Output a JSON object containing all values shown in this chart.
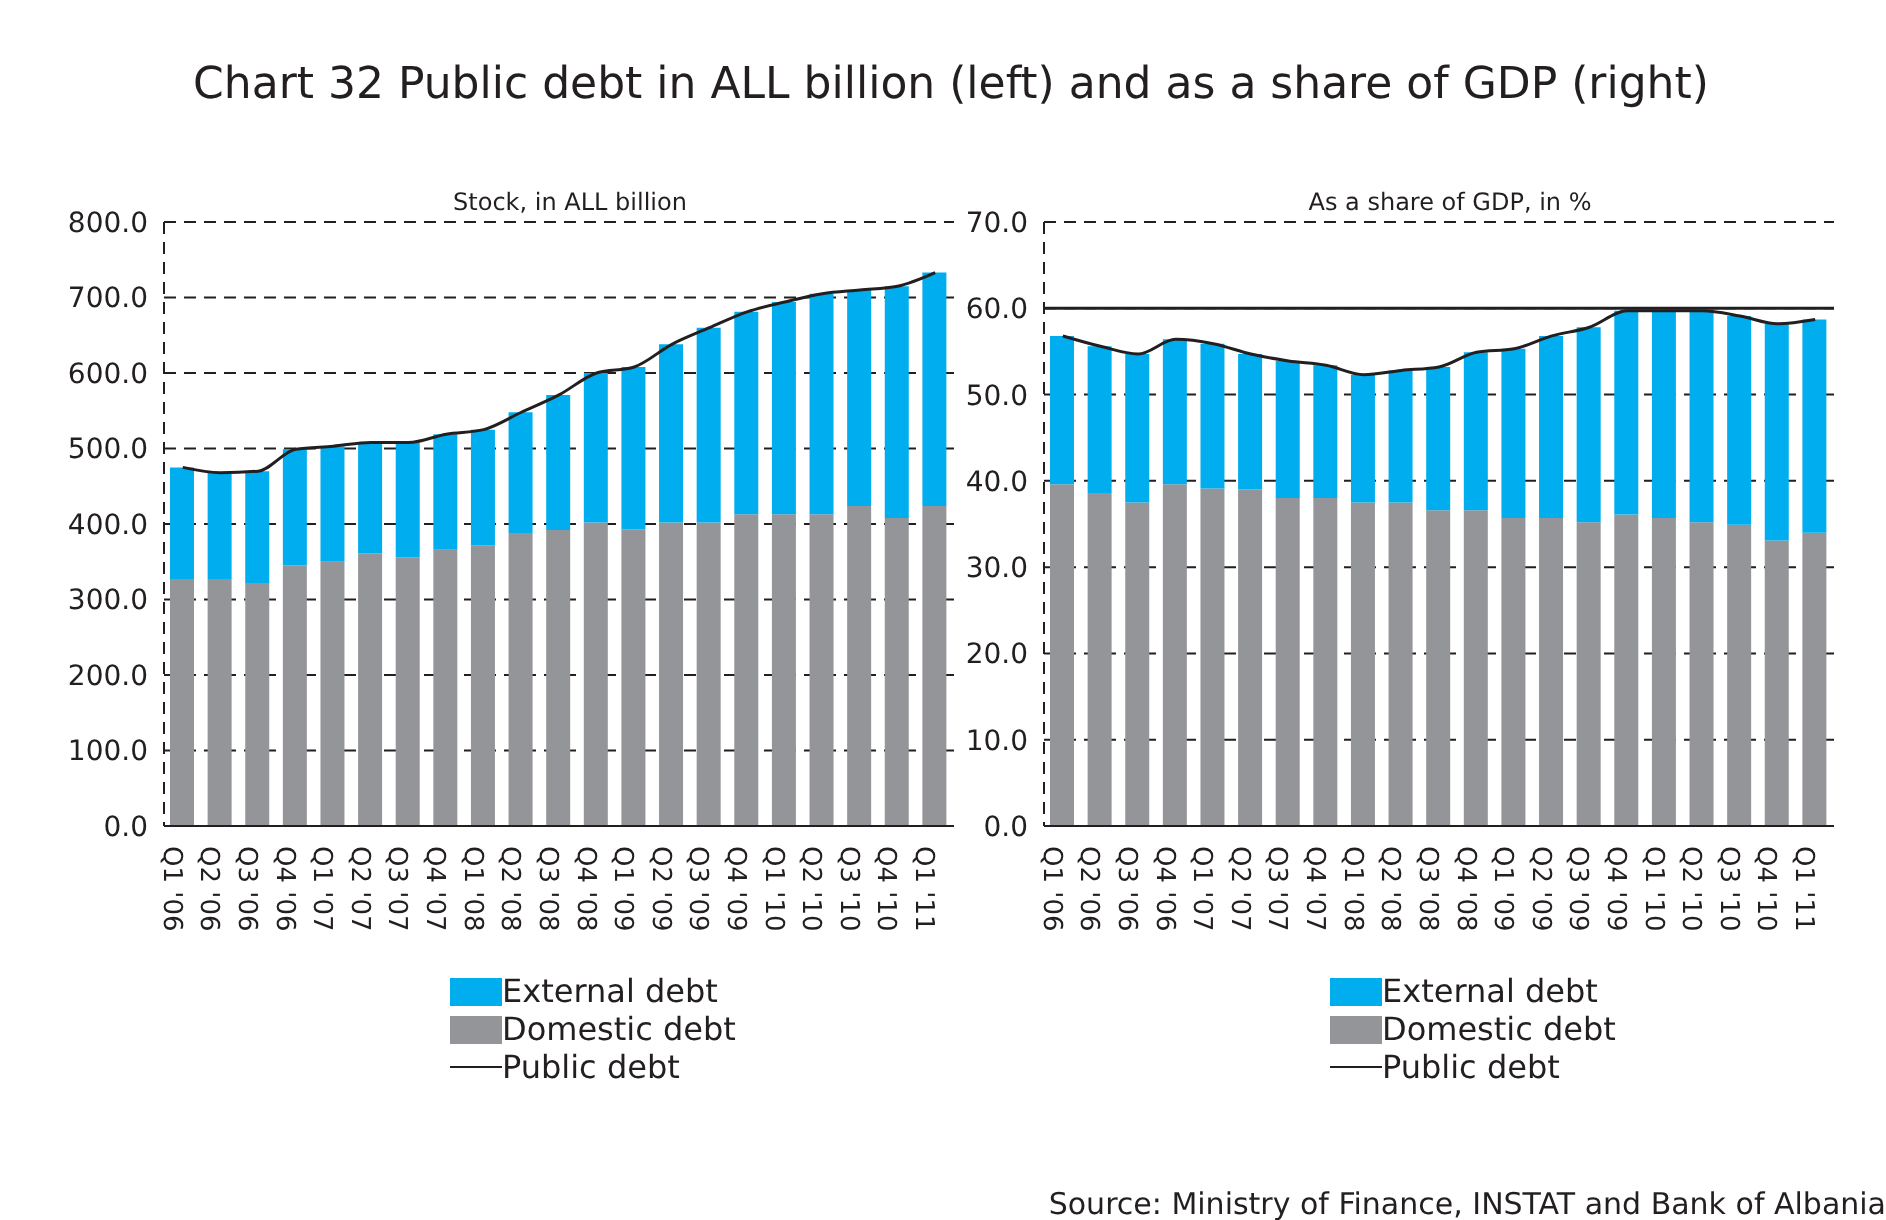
{
  "chart_data": [
    {
      "type": "bar",
      "title": "Chart 32 Public debt in ALL billion (left) and as a share of GDP (right)",
      "subtitle": "Stock, in ALL billion",
      "stacked": true,
      "grid": "y",
      "legend": "bottom",
      "marker": "none",
      "line_style": "solid",
      "categories": [
        "Q1 '06",
        "Q2 '06",
        "Q3 '06",
        "Q4 '06",
        "Q1 '07",
        "Q2 '07",
        "Q3 '07",
        "Q4 '07",
        "Q1 '08",
        "Q2 '08",
        "Q3 '08",
        "Q4 '08",
        "Q1 '09",
        "Q2 '09",
        "Q3 '09",
        "Q4 '09",
        "Q1 '10",
        "Q2 '10",
        "Q3 '10",
        "Q4 '10",
        "Q1 '11"
      ],
      "series": [
        {
          "name": "Domestic debt",
          "type": "bar",
          "color": "#939598",
          "values": [
            327,
            327,
            322,
            345,
            350,
            361,
            356,
            366,
            372,
            388,
            392,
            402,
            393,
            402,
            402,
            413,
            413,
            413,
            424,
            408,
            424
          ]
        },
        {
          "name": "External debt",
          "type": "bar",
          "color": "#00aeef",
          "values": [
            148,
            141,
            148,
            154,
            153,
            147,
            152,
            153,
            153,
            160,
            179,
            198,
            215,
            236,
            258,
            268,
            281,
            292,
            286,
            307,
            309
          ]
        },
        {
          "name": "Public debt",
          "type": "line",
          "color": "#231f20",
          "values": [
            475,
            468,
            470,
            499,
            503,
            508,
            508,
            519,
            525,
            548,
            571,
            600,
            608,
            638,
            660,
            681,
            694,
            705,
            710,
            715,
            733
          ]
        }
      ],
      "ylim": [
        0,
        800
      ],
      "yticks": [
        {
          "value": 0,
          "label": "0.0"
        },
        {
          "value": 100,
          "label": "100.0"
        },
        {
          "value": 200,
          "label": "200.0"
        },
        {
          "value": 300,
          "label": "300.0"
        },
        {
          "value": 400,
          "label": "400.0"
        },
        {
          "value": 500,
          "label": "500.0"
        },
        {
          "value": 600,
          "label": "600.0"
        },
        {
          "value": 700,
          "label": "700.0"
        },
        {
          "value": 800,
          "label": "800.0"
        }
      ]
    },
    {
      "type": "bar",
      "subtitle": "As a share of GDP, in %",
      "stacked": true,
      "grid": "y",
      "legend": "bottom",
      "marker": "none",
      "line_style": "solid",
      "categories": [
        "Q1 '06",
        "Q2 '06",
        "Q3 '06",
        "Q4 '06",
        "Q1 '07",
        "Q2 '07",
        "Q3 '07",
        "Q4 '07",
        "Q1 '08",
        "Q2 '08",
        "Q3 '08",
        "Q4 '08",
        "Q1 '09",
        "Q2 '09",
        "Q3 '09",
        "Q4 '09",
        "Q1 '10",
        "Q2 '10",
        "Q3 '10",
        "Q4 '10",
        "Q1 '11"
      ],
      "series": [
        {
          "name": "Domestic debt",
          "type": "bar",
          "color": "#939598",
          "values": [
            39.6,
            38.6,
            37.5,
            39.6,
            39.1,
            39.0,
            38.0,
            38.0,
            37.5,
            37.5,
            36.6,
            36.6,
            35.7,
            35.7,
            35.2,
            36.1,
            35.7,
            35.2,
            34.9,
            33.1,
            34.0
          ]
        },
        {
          "name": "External debt",
          "type": "bar",
          "color": "#00aeef",
          "values": [
            17.2,
            17.0,
            17.2,
            16.8,
            16.8,
            15.7,
            15.9,
            15.4,
            14.8,
            15.3,
            16.6,
            18.3,
            19.6,
            21.1,
            22.6,
            23.6,
            24.0,
            24.5,
            24.2,
            25.1,
            24.7
          ]
        },
        {
          "name": "Public debt",
          "type": "line",
          "color": "#231f20",
          "values": [
            56.8,
            55.6,
            54.7,
            56.4,
            55.9,
            54.7,
            53.9,
            53.4,
            52.3,
            52.8,
            53.2,
            54.9,
            55.3,
            56.8,
            57.8,
            59.7,
            59.7,
            59.7,
            59.1,
            58.2,
            58.7
          ]
        }
      ],
      "ylim": [
        0,
        70
      ],
      "yticks": [
        {
          "value": 0,
          "label": "0.0"
        },
        {
          "value": 10,
          "label": "10.0"
        },
        {
          "value": 20,
          "label": "20.0"
        },
        {
          "value": 30,
          "label": "30.0"
        },
        {
          "value": 40,
          "label": "40.0"
        },
        {
          "value": 50,
          "label": "50.0"
        },
        {
          "value": 60,
          "label": "60.0"
        },
        {
          "value": 70,
          "label": "70.0"
        }
      ],
      "ref_lines": [
        {
          "axis": "y",
          "value": 60,
          "color": "#231f20"
        }
      ],
      "annotations": [
        "Source: Ministry of Finance, INSTAT and Bank of Albania"
      ]
    }
  ]
}
